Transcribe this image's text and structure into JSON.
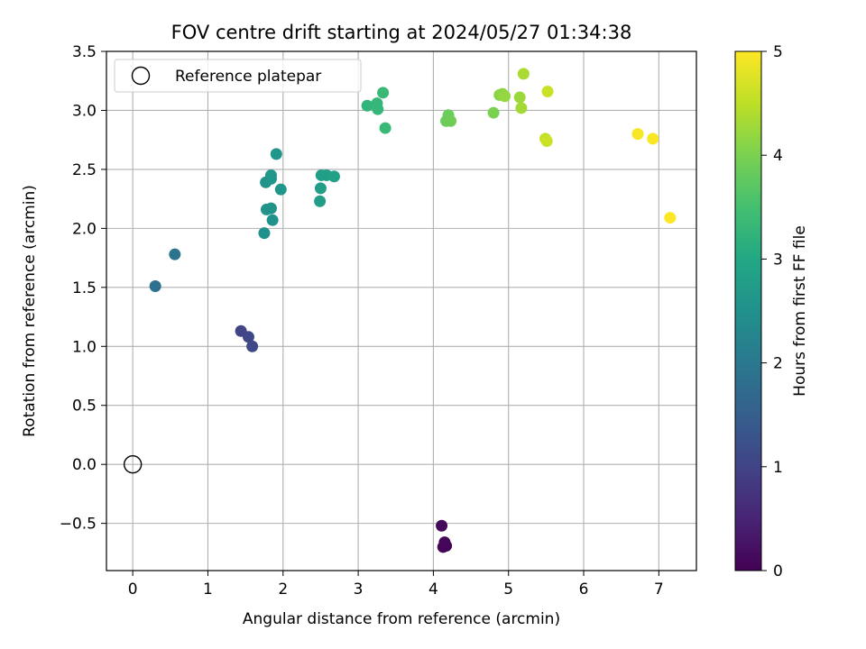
{
  "chart_data": {
    "type": "scatter",
    "title": "FOV centre drift starting at 2024/05/27 01:34:38",
    "xlabel": "Angular distance from reference (arcmin)",
    "ylabel": "Rotation from reference (arcmin)",
    "xlim": [
      -0.35,
      7.5
    ],
    "ylim": [
      -0.9,
      3.5
    ],
    "x_ticks": [
      0,
      1,
      2,
      3,
      4,
      5,
      6,
      7
    ],
    "x_tick_labels": [
      "0",
      "1",
      "2",
      "3",
      "4",
      "5",
      "6",
      "7"
    ],
    "y_ticks": [
      -0.5,
      0.0,
      0.5,
      1.0,
      1.5,
      2.0,
      2.5,
      3.0,
      3.5
    ],
    "y_tick_labels": [
      "−0.5",
      "0.0",
      "0.5",
      "1.0",
      "1.5",
      "2.0",
      "2.5",
      "3.0",
      "3.5"
    ],
    "grid": true,
    "legend": {
      "position": "top-left",
      "entries": [
        "Reference platepar"
      ]
    },
    "reference_point": {
      "x": 0,
      "y": 0,
      "name": "Reference platepar"
    },
    "colorbar": {
      "label": "Hours from first FF file",
      "range": [
        0,
        5
      ],
      "ticks": [
        0,
        1,
        2,
        3,
        4,
        5
      ],
      "tick_labels": [
        "0",
        "1",
        "2",
        "3",
        "4",
        "5"
      ],
      "colormap": "viridis"
    },
    "points": [
      {
        "x": 4.17,
        "y": -0.69,
        "hours": 0.02
      },
      {
        "x": 4.13,
        "y": -0.7,
        "hours": 0.05
      },
      {
        "x": 4.15,
        "y": -0.66,
        "hours": 0.08
      },
      {
        "x": 4.11,
        "y": -0.52,
        "hours": 0.12
      },
      {
        "x": 1.44,
        "y": 1.13,
        "hours": 1.0
      },
      {
        "x": 1.54,
        "y": 1.08,
        "hours": 1.05
      },
      {
        "x": 1.59,
        "y": 1.0,
        "hours": 1.1
      },
      {
        "x": 0.3,
        "y": 1.51,
        "hours": 1.85
      },
      {
        "x": 0.56,
        "y": 1.78,
        "hours": 1.9
      },
      {
        "x": 1.75,
        "y": 1.96,
        "hours": 2.5
      },
      {
        "x": 1.86,
        "y": 2.07,
        "hours": 2.5
      },
      {
        "x": 1.78,
        "y": 2.16,
        "hours": 2.55
      },
      {
        "x": 1.84,
        "y": 2.17,
        "hours": 2.55
      },
      {
        "x": 1.77,
        "y": 2.39,
        "hours": 2.55
      },
      {
        "x": 1.84,
        "y": 2.42,
        "hours": 2.6
      },
      {
        "x": 1.84,
        "y": 2.45,
        "hours": 2.6
      },
      {
        "x": 1.97,
        "y": 2.33,
        "hours": 2.6
      },
      {
        "x": 1.91,
        "y": 2.63,
        "hours": 2.6
      },
      {
        "x": 2.49,
        "y": 2.23,
        "hours": 2.75
      },
      {
        "x": 2.5,
        "y": 2.34,
        "hours": 2.75
      },
      {
        "x": 2.51,
        "y": 2.45,
        "hours": 2.75
      },
      {
        "x": 2.58,
        "y": 2.45,
        "hours": 2.8
      },
      {
        "x": 2.68,
        "y": 2.44,
        "hours": 2.85
      },
      {
        "x": 3.12,
        "y": 3.04,
        "hours": 3.25
      },
      {
        "x": 3.25,
        "y": 3.06,
        "hours": 3.3
      },
      {
        "x": 3.26,
        "y": 3.01,
        "hours": 3.3
      },
      {
        "x": 3.33,
        "y": 3.15,
        "hours": 3.35
      },
      {
        "x": 3.36,
        "y": 2.85,
        "hours": 3.35
      },
      {
        "x": 4.17,
        "y": 2.91,
        "hours": 3.85
      },
      {
        "x": 4.2,
        "y": 2.96,
        "hours": 3.85
      },
      {
        "x": 4.23,
        "y": 2.91,
        "hours": 3.9
      },
      {
        "x": 4.8,
        "y": 2.98,
        "hours": 4.0
      },
      {
        "x": 4.88,
        "y": 3.13,
        "hours": 4.1
      },
      {
        "x": 4.92,
        "y": 3.14,
        "hours": 4.15
      },
      {
        "x": 4.95,
        "y": 3.12,
        "hours": 4.2
      },
      {
        "x": 5.15,
        "y": 3.11,
        "hours": 4.25
      },
      {
        "x": 5.17,
        "y": 3.02,
        "hours": 4.3
      },
      {
        "x": 5.2,
        "y": 3.31,
        "hours": 4.35
      },
      {
        "x": 5.49,
        "y": 2.76,
        "hours": 4.55
      },
      {
        "x": 5.51,
        "y": 2.74,
        "hours": 4.6
      },
      {
        "x": 5.52,
        "y": 3.16,
        "hours": 4.6
      },
      {
        "x": 6.72,
        "y": 2.8,
        "hours": 4.95
      },
      {
        "x": 6.92,
        "y": 2.76,
        "hours": 4.97
      },
      {
        "x": 7.15,
        "y": 2.09,
        "hours": 5.0
      }
    ]
  }
}
